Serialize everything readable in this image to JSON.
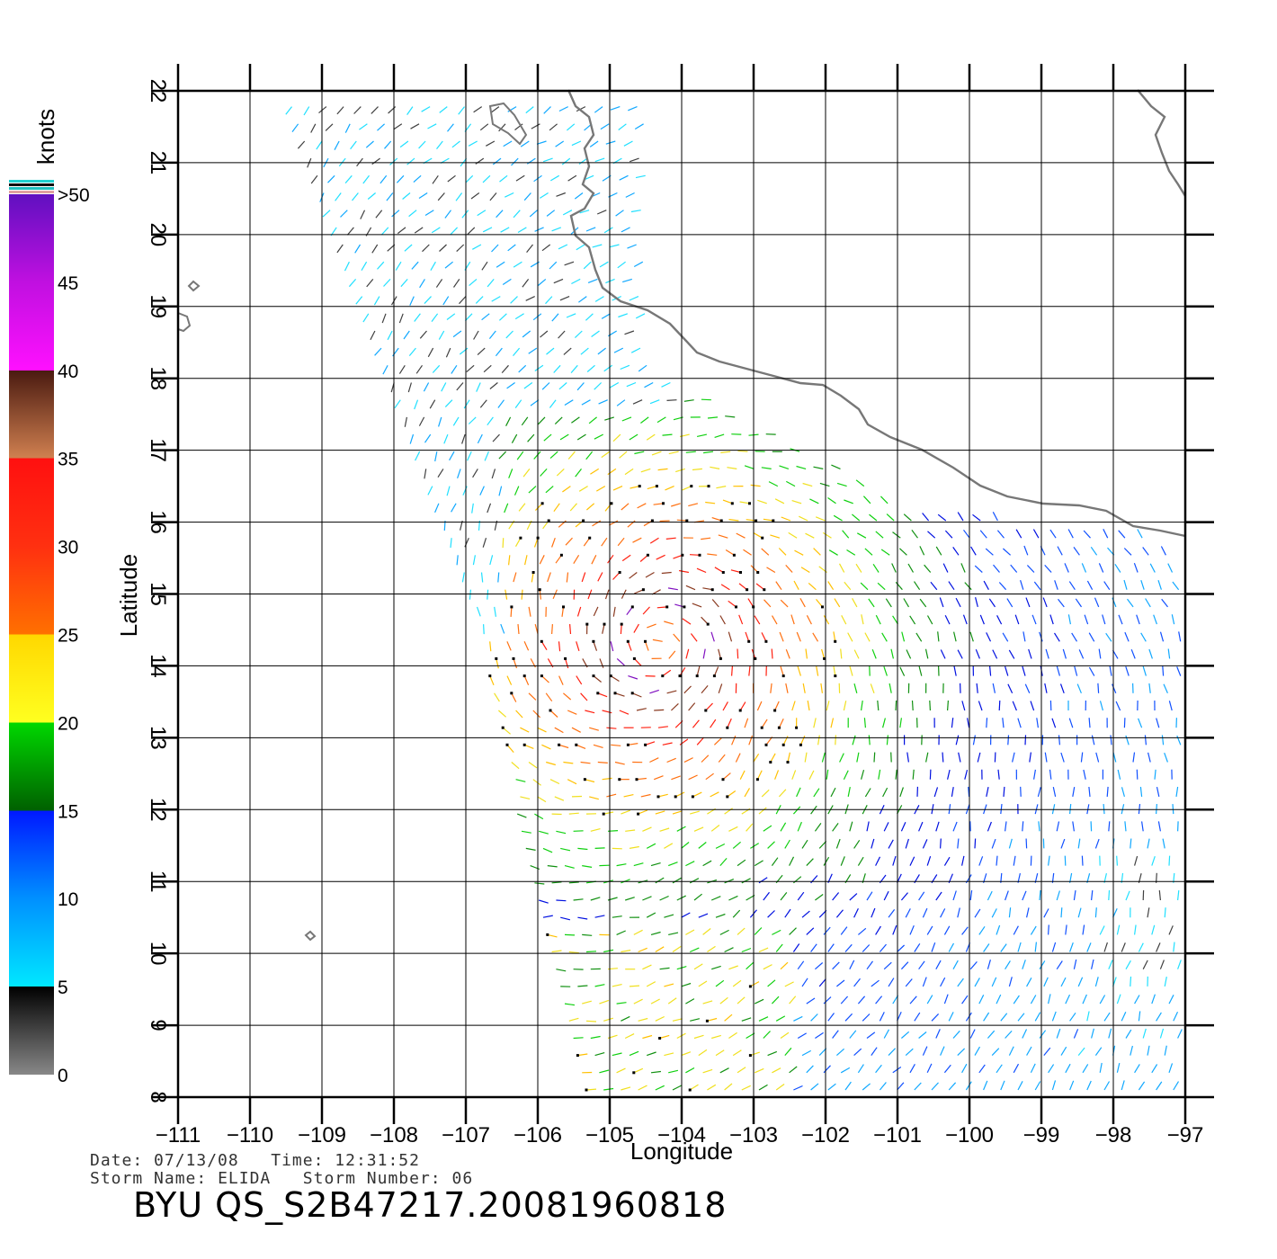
{
  "map": {
    "lon_ticks": [
      "−111",
      "−110",
      "−109",
      "−108",
      "−107",
      "−106",
      "−105",
      "−104",
      "−103",
      "−102",
      "−101",
      "−100",
      "−99",
      "−98",
      "−97"
    ],
    "lat_ticks": [
      "8",
      "9",
      "10",
      "11",
      "12",
      "13",
      "14",
      "15",
      "16",
      "17",
      "18",
      "19",
      "20",
      "21",
      "22"
    ],
    "lon_range": [
      -111,
      -97
    ],
    "lat_range": [
      8,
      22
    ],
    "xlabel": "Longitude",
    "ylabel": "Latitude"
  },
  "colorbar": {
    "unit": "knots",
    "labels": [
      ">50",
      "45",
      "40",
      "35",
      "30",
      "25",
      "20",
      "15",
      "10",
      "5",
      "0"
    ],
    "colors": {
      "0": "#888888",
      "5": "#00e8ff",
      "10": "#0018ff",
      "15": "#00d800",
      "20": "#ffd800",
      "25": "#ff7000",
      "30": "#ff1010",
      "35": "#4a1a10",
      "40": "#ff10ff",
      "45": "#9010d0",
      "50": "#6010c0"
    }
  },
  "storm": {
    "date_label": "Date:",
    "date": "07/13/08",
    "time_label": "Time:",
    "time": "12:31:52",
    "name_label": "Storm Name:",
    "name": "ELIDA",
    "number_label": "Storm Number:",
    "number": "06",
    "center_lat": 14.3,
    "center_lon": -104.3
  },
  "product_id": "BYU QS_S2B47217.20081960818"
}
